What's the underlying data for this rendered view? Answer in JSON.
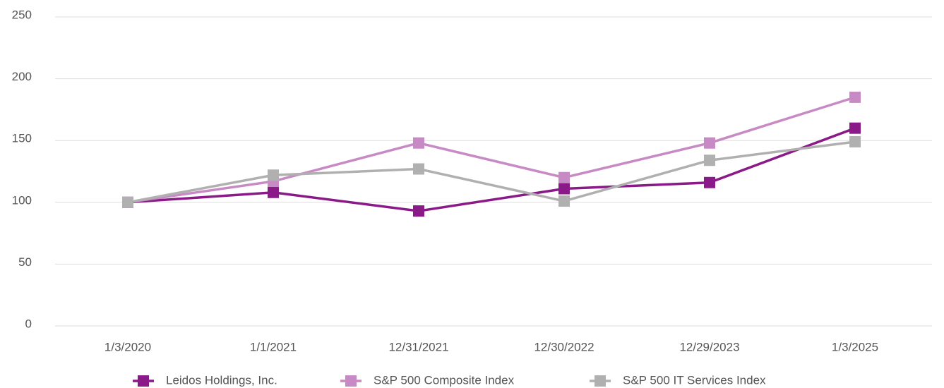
{
  "chart_data": {
    "type": "line",
    "categories": [
      "1/3/2020",
      "1/1/2021",
      "12/31/2021",
      "12/30/2022",
      "12/29/2023",
      "1/3/2025"
    ],
    "series": [
      {
        "name": "Leidos Holdings, Inc.",
        "color": "#8b1a89",
        "values": [
          100,
          108,
          93,
          111,
          116,
          160
        ]
      },
      {
        "name": "S&P 500 Composite Index",
        "color": "#c88ac4",
        "values": [
          100,
          117,
          148,
          120,
          148,
          185
        ]
      },
      {
        "name": "S&P 500 IT Services Index",
        "color": "#b0b0b0",
        "values": [
          100,
          122,
          127,
          101,
          134,
          149
        ]
      }
    ],
    "ylim": [
      0,
      250
    ],
    "yticks": [
      0,
      50,
      100,
      150,
      200,
      250
    ],
    "grid": true,
    "legend": "bottom"
  }
}
